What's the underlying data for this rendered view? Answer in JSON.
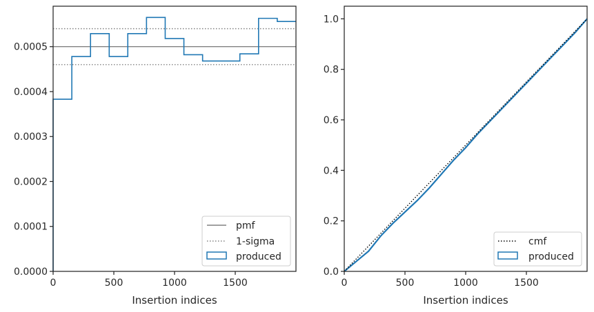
{
  "chart_data": [
    {
      "type": "line",
      "xlabel": "Insertion indices",
      "ylabel": "",
      "xlim": [
        0,
        2000
      ],
      "ylim": [
        0,
        0.00059
      ],
      "x_ticks": [
        0,
        500,
        1000,
        1500
      ],
      "y_ticks": [
        0,
        0.0001,
        0.0002,
        0.0003,
        0.0004,
        0.0005
      ],
      "y_tick_labels": [
        "0.0000",
        "0.0001",
        "0.0002",
        "0.0003",
        "0.0004",
        "0.0005"
      ],
      "grid": false,
      "legend_position": "bottom-right",
      "legend": [
        "pmf",
        "1-sigma",
        "produced"
      ],
      "pmf": 0.0005,
      "sigma_band": [
        0.00046,
        0.00054
      ],
      "histogram": {
        "name": "produced",
        "bin_edges": [
          0,
          154,
          308,
          462,
          615,
          769,
          923,
          1077,
          1231,
          1385,
          1538,
          1692,
          1846,
          2000
        ],
        "values": [
          0.000383,
          0.000478,
          0.000529,
          0.000478,
          0.000529,
          0.000565,
          0.000518,
          0.000482,
          0.000468,
          0.000468,
          0.000484,
          0.000563,
          0.000556
        ]
      },
      "colors": {
        "pmf": "#808080",
        "sigma": "#808080",
        "produced": "#1f77b4"
      }
    },
    {
      "type": "line",
      "xlabel": "Insertion indices",
      "ylabel": "",
      "xlim": [
        0,
        2000
      ],
      "ylim": [
        0,
        1.05
      ],
      "x_ticks": [
        0,
        500,
        1000,
        1500
      ],
      "y_ticks": [
        0,
        0.2,
        0.4,
        0.6,
        0.8,
        1.0
      ],
      "y_tick_labels": [
        "0.0",
        "0.2",
        "0.4",
        "0.6",
        "0.8",
        "1.0"
      ],
      "grid": false,
      "legend_position": "bottom-right",
      "legend": [
        "cmf",
        "produced"
      ],
      "cmf": {
        "x": [
          0,
          2000
        ],
        "y": [
          0,
          1.0
        ]
      },
      "produced": {
        "name": "produced",
        "x": [
          0,
          100,
          200,
          300,
          400,
          500,
          600,
          700,
          800,
          900,
          1000,
          1100,
          1200,
          1300,
          1400,
          1500,
          1600,
          1700,
          1800,
          1900,
          2000
        ],
        "y": [
          0,
          0.04,
          0.08,
          0.14,
          0.19,
          0.235,
          0.28,
          0.33,
          0.385,
          0.44,
          0.49,
          0.545,
          0.595,
          0.645,
          0.695,
          0.745,
          0.795,
          0.845,
          0.895,
          0.945,
          1.0
        ]
      },
      "colors": {
        "cmf": "#000000",
        "produced": "#1f77b4"
      }
    }
  ]
}
